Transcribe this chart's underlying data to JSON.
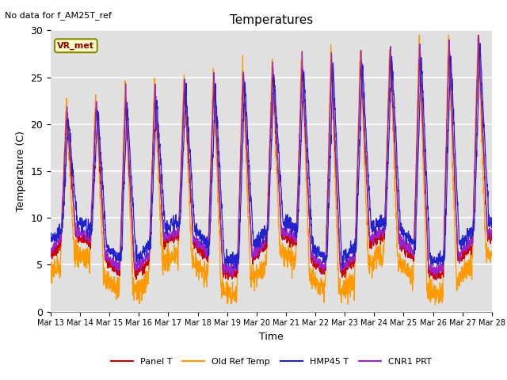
{
  "title": "Temperatures",
  "ylabel": "Temperature (C)",
  "xlabel": "Time",
  "note": "No data for f_AM25T_ref",
  "legend_label": "VR_met",
  "ylim": [
    0,
    30
  ],
  "panel_t_color": "#cc0000",
  "old_ref_color": "#ff9900",
  "hmp45_color": "#2222cc",
  "cnr1_color": "#9922cc",
  "background_color": "#e0e0e0",
  "legend": [
    {
      "label": "Panel T",
      "color": "#cc0000"
    },
    {
      "label": "Old Ref Temp",
      "color": "#ff9900"
    },
    {
      "label": "HMP45 T",
      "color": "#2222cc"
    },
    {
      "label": "CNR1 PRT",
      "color": "#9922cc"
    }
  ],
  "tick_dates": [
    "Mar 13",
    "Mar 14",
    "Mar 15",
    "Mar 16",
    "Mar 17",
    "Mar 18",
    "Mar 19",
    "Mar 20",
    "Mar 21",
    "Mar 22",
    "Mar 23",
    "Mar 24",
    "Mar 25",
    "Mar 26",
    "Mar 27",
    "Mar 28"
  ],
  "num_days": 15,
  "points_per_day": 144
}
